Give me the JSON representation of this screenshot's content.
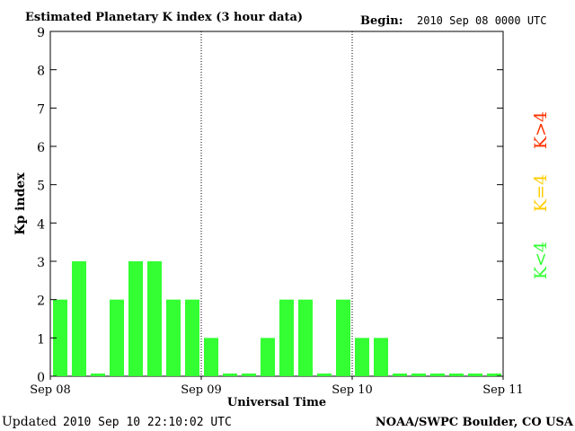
{
  "header": {
    "title": "Estimated Planetary K index (3 hour data)",
    "begin_label": "Begin:",
    "begin_value": "2010 Sep 08 0000 UTC"
  },
  "footer": {
    "updated_label": "Updated",
    "updated_value": "2010 Sep 10 22:10:02 UTC",
    "source": "NOAA/SWPC Boulder, CO USA"
  },
  "legend": {
    "items": [
      {
        "label": "K<4",
        "color": "#33ff33"
      },
      {
        "label": "K=4",
        "color": "#ffcc00"
      },
      {
        "label": "K>4",
        "color": "#ff3300"
      }
    ]
  },
  "chart_data": {
    "type": "bar",
    "title": "Estimated Planetary K index (3 hour data)",
    "xlabel": "Universal Time",
    "ylabel": "Kp index",
    "ylim": [
      0,
      9
    ],
    "yticks": [
      0,
      1,
      2,
      3,
      4,
      5,
      6,
      7,
      8,
      9
    ],
    "x_tick_labels": [
      "Sep 08",
      "Sep 09",
      "Sep 10",
      "Sep 11"
    ],
    "day_separators": [
      "Sep 09",
      "Sep 10"
    ],
    "grid": false,
    "legend_placement": "right",
    "intervals_per_day": 8,
    "categories": [
      "Sep 08 00",
      "Sep 08 03",
      "Sep 08 06",
      "Sep 08 09",
      "Sep 08 12",
      "Sep 08 15",
      "Sep 08 18",
      "Sep 08 21",
      "Sep 09 00",
      "Sep 09 03",
      "Sep 09 06",
      "Sep 09 09",
      "Sep 09 12",
      "Sep 09 15",
      "Sep 09 18",
      "Sep 09 21",
      "Sep 10 00",
      "Sep 10 03",
      "Sep 10 06",
      "Sep 10 09",
      "Sep 10 12",
      "Sep 10 15",
      "Sep 10 18",
      "Sep 10 21"
    ],
    "values": [
      2,
      3,
      0,
      2,
      3,
      3,
      2,
      2,
      1,
      0,
      0,
      1,
      2,
      2,
      0,
      2,
      1,
      1,
      0,
      0,
      0,
      0,
      0,
      0
    ],
    "bar_color": "#33ff33"
  }
}
